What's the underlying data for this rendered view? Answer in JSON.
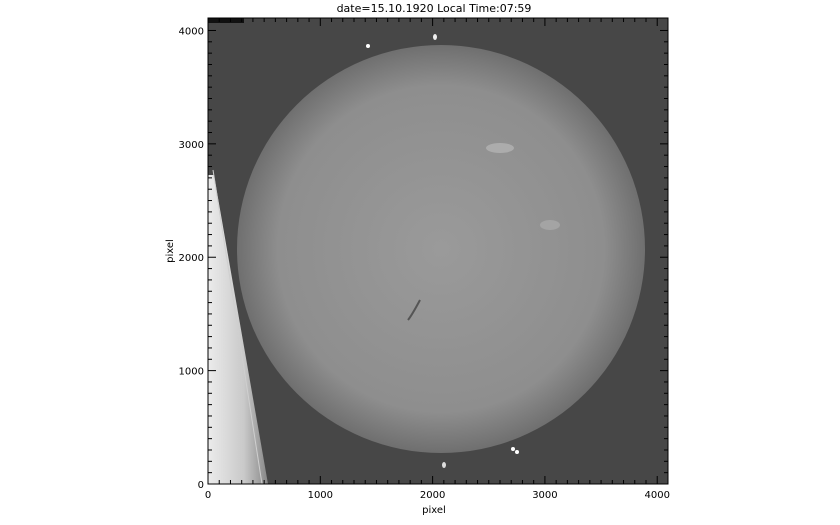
{
  "plot": {
    "title": "date=15.10.1920 Local Time:07:59",
    "xlabel": "pixel",
    "ylabel": "pixel",
    "x_ticks": [
      "0",
      "1000",
      "2000",
      "3000",
      "4000"
    ],
    "y_ticks": [
      "0",
      "1000",
      "2000",
      "3000",
      "4000"
    ],
    "x_range": [
      0,
      4096
    ],
    "y_range": [
      0,
      4110
    ],
    "colormap": "grayscale",
    "subject": "solar disk spectroheliogram"
  }
}
